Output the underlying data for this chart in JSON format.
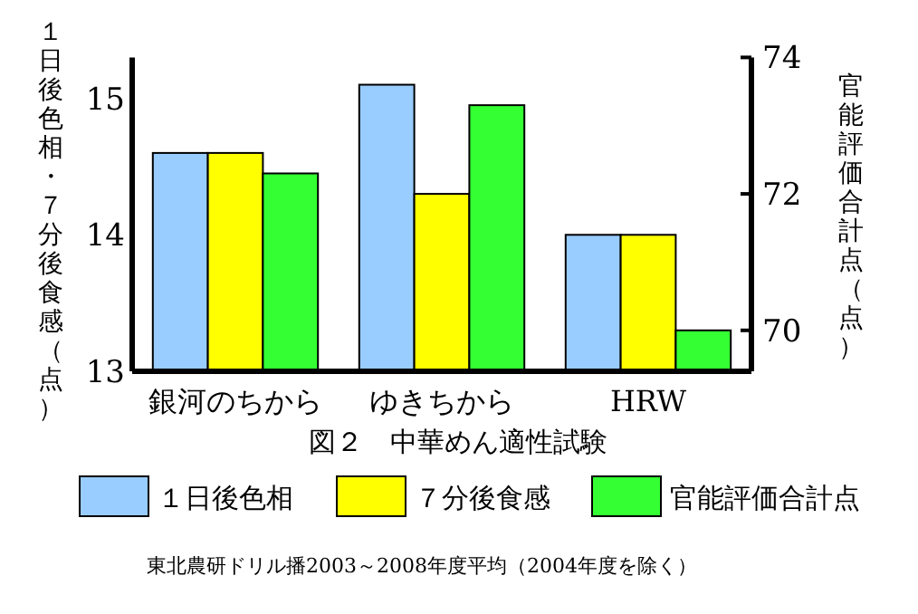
{
  "chart_data": {
    "type": "bar",
    "title": "図２　中華めん適性試験",
    "ylabel": "１日後色相・７分後食感（点）",
    "y2label": "官能評価合計点（点）",
    "annotations": [
      "東北農研ドリル播2003～2008年度平均（2004年度を除く）"
    ],
    "categories": [
      "銀河のちから",
      "ゆきちから",
      "HRW"
    ],
    "series": [
      {
        "name": "１日後色相",
        "color": "#99ccff",
        "values": [
          14.6,
          15.1,
          14.0
        ]
      },
      {
        "name": "７分後食感",
        "color": "#ffff00",
        "values": [
          14.6,
          14.3,
          14.0
        ]
      },
      {
        "name": "官能評価合計点",
        "color": "#33ff33",
        "axis": "y2",
        "values": [
          72.3,
          73.3,
          70.0
        ]
      }
    ],
    "ylim": [
      13,
      15.3
    ],
    "yticks": [
      13,
      14,
      15
    ],
    "y2lim": [
      69.4,
      74
    ],
    "y2ticks": [
      70,
      72,
      74
    ],
    "legend": "bottom"
  }
}
